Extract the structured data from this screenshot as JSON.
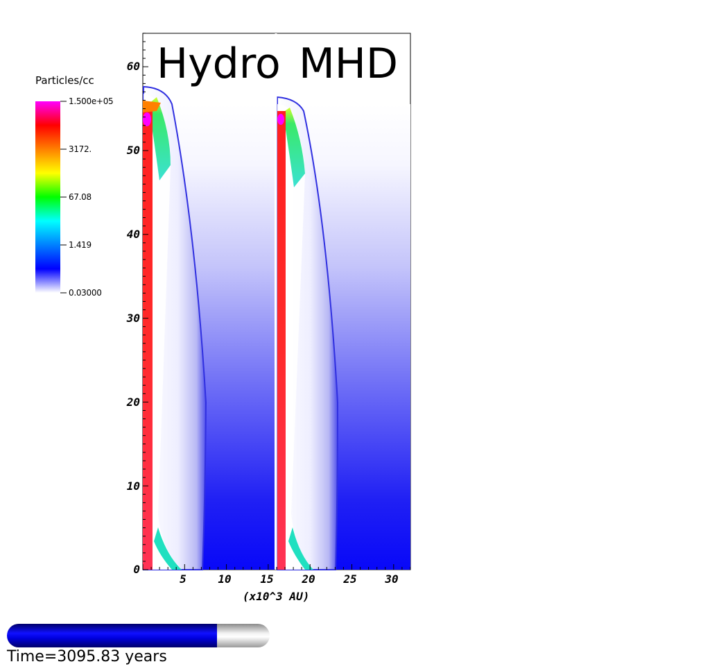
{
  "panels": [
    {
      "title": "Hydro"
    },
    {
      "title": "MHD"
    }
  ],
  "colorbar": {
    "title": "Particles/cc",
    "labels": [
      "1.500e+05",
      "3172.",
      "67.08",
      "1.419",
      "0.03000"
    ],
    "colors": [
      "#ff00ff",
      "#ff0000",
      "#ff8000",
      "#ffff00",
      "#00ff00",
      "#00ffff",
      "#0080ff",
      "#0000ff",
      "#ffffff"
    ]
  },
  "axes": {
    "y_ticks": [
      "0",
      "10",
      "20",
      "30",
      "40",
      "50",
      "60"
    ],
    "x_ticks": [
      "5",
      "10",
      "15",
      "20",
      "25",
      "30"
    ],
    "x_unit": "(x10^3 AU)"
  },
  "time": {
    "label": "Time=3095.83 years",
    "progress": 0.8
  }
}
